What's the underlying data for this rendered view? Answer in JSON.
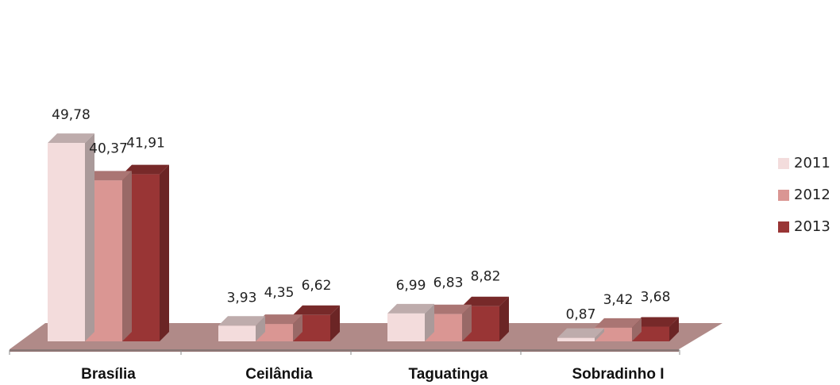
{
  "chart_data": {
    "type": "bar",
    "style": "3d-clustered-column",
    "categories": [
      "Brasília",
      "Ceilândia",
      "Taguatinga",
      "Sobradinho I"
    ],
    "series": [
      {
        "name": "2011",
        "values": [
          49.78,
          3.93,
          6.99,
          0.87
        ],
        "labels": [
          "49,78",
          "3,93",
          "6,99",
          "0,87"
        ],
        "color": "#f3dcdc"
      },
      {
        "name": "2012",
        "values": [
          40.37,
          4.35,
          6.83,
          3.42
        ],
        "labels": [
          "40,37",
          "4,35",
          "6,83",
          "3,42"
        ],
        "color": "#da9693"
      },
      {
        "name": "2013",
        "values": [
          41.91,
          6.62,
          8.82,
          3.68
        ],
        "labels": [
          "41,91",
          "6,62",
          "8,82",
          "3,68"
        ],
        "color": "#993535"
      }
    ],
    "floor_color": "#b08a88",
    "legend": "right",
    "grid": false,
    "ylim": [
      0,
      50
    ]
  }
}
